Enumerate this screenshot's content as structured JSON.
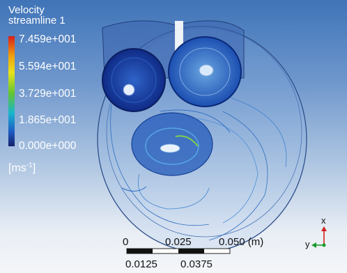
{
  "legend": {
    "title_line1": "Velocity",
    "title_line2": "streamline 1",
    "ticks": [
      "7.459e+001",
      "5.594e+001",
      "3.729e+001",
      "1.865e+001",
      "0.000e+000"
    ],
    "units_base": "[ms",
    "units_exp": "-1",
    "units_close": "]",
    "colors": [
      "#d91e18",
      "#f0a10e",
      "#e8e31a",
      "#62c431",
      "#19b5cf",
      "#1f5fc6",
      "#15216a"
    ]
  },
  "scale": {
    "top_labels": [
      "0",
      "0.025",
      "0.050 (m)"
    ],
    "bottom_labels": [
      "0.0125",
      "0.0375"
    ]
  },
  "axes": {
    "x": "x",
    "y": "y"
  }
}
